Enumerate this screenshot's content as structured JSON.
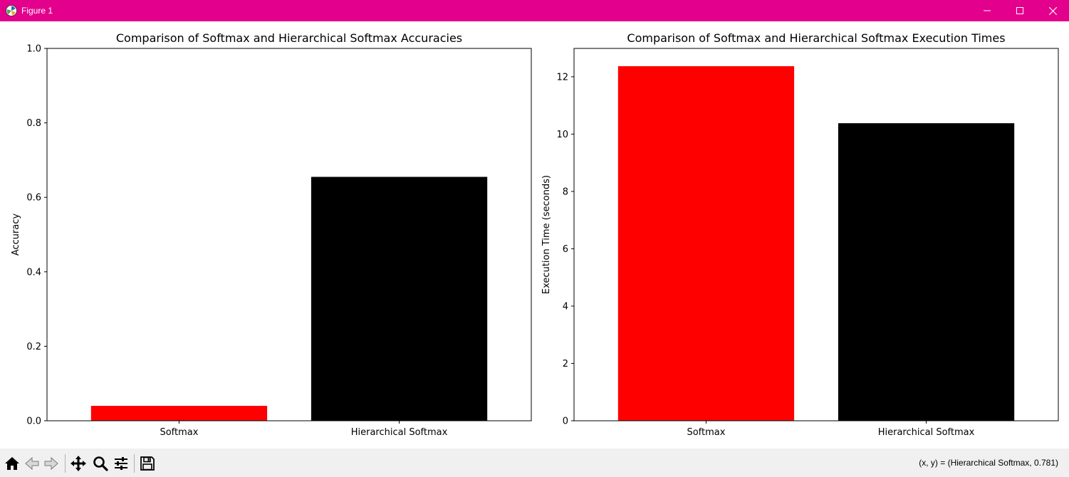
{
  "window": {
    "title": "Figure 1",
    "titlebar_color": "#e3008c"
  },
  "toolbar": {
    "buttons": [
      "home-icon",
      "back-arrow-icon",
      "forward-arrow-icon",
      "pan-move-icon",
      "zoom-magnifier-icon",
      "configure-subplots-icon",
      "save-floppy-icon"
    ],
    "coord_readout": "(x, y) = (Hierarchical Softmax, 0.781)"
  },
  "chart_data": [
    {
      "type": "bar",
      "title": "Comparison of Softmax and Hierarchical Softmax Accuracies",
      "xlabel": "",
      "ylabel": "Accuracy",
      "categories": [
        "Softmax",
        "Hierarchical Softmax"
      ],
      "values": [
        0.04,
        0.655
      ],
      "colors": [
        "#ff0000",
        "#000000"
      ],
      "ylim": [
        0,
        1.0
      ],
      "yticks": [
        0.0,
        0.2,
        0.4,
        0.6,
        0.8,
        1.0
      ],
      "ytick_labels": [
        "0.0",
        "0.2",
        "0.4",
        "0.6",
        "0.8",
        "1.0"
      ],
      "grid": false
    },
    {
      "type": "bar",
      "title": "Comparison of Softmax and Hierarchical Softmax Execution Times",
      "xlabel": "",
      "ylabel": "Execution Time (seconds)",
      "categories": [
        "Softmax",
        "Hierarchical Softmax"
      ],
      "values": [
        12.37,
        10.38
      ],
      "colors": [
        "#ff0000",
        "#000000"
      ],
      "ylim": [
        0,
        12.99
      ],
      "yticks": [
        0,
        2,
        4,
        6,
        8,
        10,
        12
      ],
      "ytick_labels": [
        "0",
        "2",
        "4",
        "6",
        "8",
        "10",
        "12"
      ],
      "grid": false
    }
  ]
}
